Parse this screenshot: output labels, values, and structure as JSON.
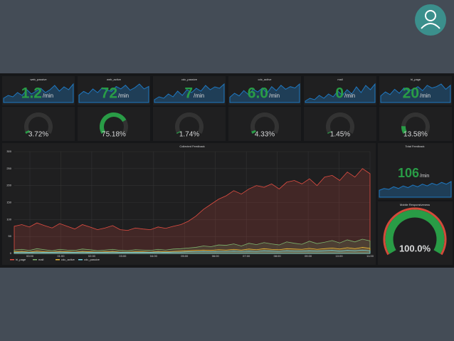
{
  "dashboard": {
    "stats": [
      {
        "title": "web_passive",
        "value": 1.2,
        "value_label": "1.2",
        "unit": "/min",
        "spark": [
          3,
          5,
          4,
          7,
          5,
          9,
          6,
          8,
          10,
          7,
          9,
          12,
          8,
          11,
          9,
          13
        ]
      },
      {
        "title": "web_active",
        "value": 72,
        "value_label": "72",
        "unit": "/min",
        "spark": [
          6,
          9,
          7,
          11,
          8,
          12,
          10,
          9,
          13,
          11,
          14,
          10,
          12,
          15,
          11,
          13
        ]
      },
      {
        "title": "cdc_passive",
        "value": 7,
        "value_label": "7",
        "unit": "/min",
        "spark": [
          2,
          4,
          3,
          6,
          4,
          8,
          5,
          9,
          7,
          10,
          8,
          12,
          9,
          11,
          10,
          13
        ]
      },
      {
        "title": "cdc_active",
        "value": 6.0,
        "value_label": "6.0",
        "unit": "/min",
        "spark": [
          4,
          7,
          5,
          9,
          6,
          10,
          8,
          11,
          7,
          12,
          9,
          13,
          10,
          12,
          11,
          14
        ]
      },
      {
        "title": "mail",
        "value": 0,
        "value_label": "0",
        "unit": "/min",
        "spark": [
          1,
          3,
          2,
          5,
          3,
          6,
          4,
          8,
          5,
          9,
          6,
          11,
          7,
          12,
          9,
          13
        ]
      },
      {
        "title": "hi_page",
        "value": 20,
        "value_label": "20",
        "unit": "/min",
        "spark": [
          5,
          8,
          6,
          10,
          7,
          11,
          9,
          10,
          12,
          9,
          13,
          11,
          12,
          14,
          10,
          13
        ]
      }
    ],
    "gauges": [
      {
        "value": 3.72,
        "value_label": "3.72%"
      },
      {
        "value": 75.18,
        "value_label": "75.18%"
      },
      {
        "value": 1.74,
        "value_label": "1.74%"
      },
      {
        "value": 4.33,
        "value_label": "4.33%"
      },
      {
        "value": 1.45,
        "value_label": "1.45%"
      },
      {
        "value": 13.58,
        "value_label": "13.58%"
      }
    ],
    "main_chart": {
      "title": "Collected Feedback",
      "ylim": [
        0,
        300
      ],
      "yticks": [
        0,
        50,
        100,
        150,
        200,
        250,
        300
      ],
      "xticks": [
        "00:00",
        "01:00",
        "02:00",
        "03:00",
        "04:00",
        "05:00",
        "06:00",
        "07:00",
        "08:00",
        "09:00",
        "10:00",
        "11:00"
      ],
      "series": [
        {
          "name": "hi_page",
          "color": "#e24d42",
          "values": [
            80,
            85,
            78,
            90,
            82,
            75,
            88,
            80,
            72,
            85,
            78,
            70,
            75,
            82,
            70,
            68,
            75,
            72,
            70,
            78,
            74,
            80,
            85,
            95,
            110,
            130,
            145,
            160,
            170,
            185,
            175,
            190,
            200,
            195,
            205,
            190,
            210,
            215,
            205,
            220,
            200,
            225,
            230,
            215,
            240,
            225,
            250,
            235
          ]
        },
        {
          "name": "mail",
          "color": "#7eb26d",
          "values": [
            10,
            12,
            9,
            14,
            11,
            8,
            12,
            10,
            9,
            13,
            11,
            8,
            10,
            12,
            9,
            8,
            11,
            10,
            9,
            12,
            10,
            13,
            14,
            16,
            18,
            22,
            20,
            25,
            24,
            28,
            22,
            30,
            26,
            32,
            28,
            25,
            34,
            30,
            27,
            36,
            29,
            33,
            38,
            31,
            40,
            34,
            42,
            37
          ]
        },
        {
          "name": "cdc_active",
          "color": "#eab839",
          "values": [
            5,
            6,
            4,
            7,
            5,
            4,
            6,
            5,
            4,
            6,
            5,
            4,
            5,
            6,
            4,
            4,
            5,
            5,
            4,
            6,
            5,
            6,
            7,
            8,
            9,
            10,
            9,
            11,
            10,
            12,
            10,
            13,
            11,
            14,
            12,
            11,
            14,
            13,
            12,
            15,
            12,
            14,
            16,
            13,
            17,
            14,
            18,
            15
          ]
        },
        {
          "name": "cdc_passive",
          "color": "#6ed0e0",
          "values": [
            3,
            4,
            3,
            4,
            3,
            3,
            4,
            3,
            3,
            4,
            3,
            3,
            3,
            4,
            3,
            3,
            3,
            3,
            3,
            4,
            3,
            4,
            4,
            5,
            5,
            6,
            5,
            6,
            6,
            7,
            6,
            7,
            6,
            8,
            7,
            6,
            8,
            7,
            7,
            8,
            7,
            8,
            9,
            7,
            9,
            8,
            10,
            8
          ]
        }
      ]
    },
    "total_feedback": {
      "title": "Total Feedback",
      "value": 106,
      "value_label": "106",
      "unit": "/min",
      "spark": [
        8,
        10,
        9,
        12,
        10,
        13,
        11,
        14,
        12,
        15,
        13,
        16,
        14,
        17,
        15,
        18
      ]
    },
    "responsiveness": {
      "title": "Mobile Responsiveness",
      "value": 100.0,
      "value_label": "100.0%"
    }
  }
}
